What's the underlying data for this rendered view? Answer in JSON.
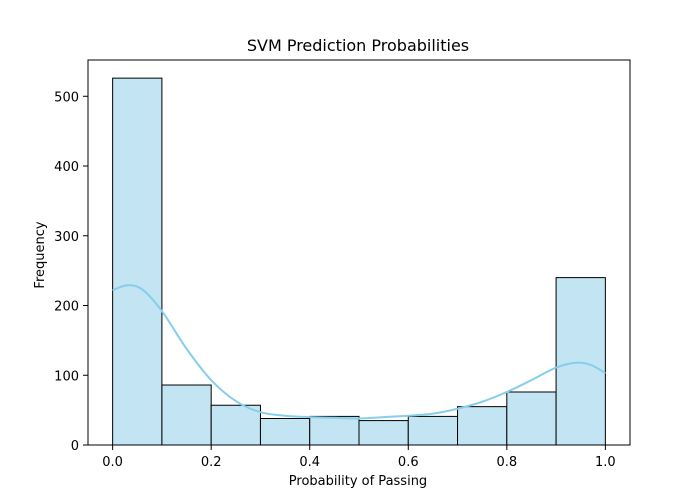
{
  "chart_data": {
    "type": "bar",
    "title": "SVM Prediction Probabilities",
    "xlabel": "Probability of Passing",
    "ylabel": "Frequency",
    "xlim": [
      -0.05,
      1.05
    ],
    "ylim": [
      0,
      552
    ],
    "bin_edges": [
      0.0,
      0.1,
      0.2,
      0.3,
      0.4,
      0.5,
      0.6,
      0.7,
      0.8,
      0.9,
      1.0
    ],
    "values": [
      526,
      86,
      57,
      38,
      41,
      35,
      41,
      55,
      76,
      240
    ],
    "x_ticks": [
      0.0,
      0.2,
      0.4,
      0.6,
      0.8,
      1.0
    ],
    "x_tick_labels": [
      "0.0",
      "0.2",
      "0.4",
      "0.6",
      "0.8",
      "1.0"
    ],
    "y_ticks": [
      0,
      100,
      200,
      300,
      400,
      500
    ],
    "y_tick_labels": [
      "0",
      "100",
      "200",
      "300",
      "400",
      "500"
    ],
    "kde": {
      "x": [
        0.0,
        0.03,
        0.06,
        0.1,
        0.15,
        0.2,
        0.25,
        0.3,
        0.35,
        0.4,
        0.45,
        0.5,
        0.55,
        0.6,
        0.65,
        0.7,
        0.75,
        0.8,
        0.85,
        0.9,
        0.94,
        0.97,
        1.0
      ],
      "y": [
        222,
        229,
        223,
        192,
        138,
        93,
        63,
        47,
        42,
        40,
        39,
        38,
        40,
        42,
        45,
        52,
        62,
        76,
        93,
        111,
        118,
        115,
        103
      ]
    },
    "grid": false,
    "colors": {
      "bar_fill": "#c2e4f3",
      "bar_edge": "#000000",
      "kde_line": "#87ceeb"
    }
  }
}
